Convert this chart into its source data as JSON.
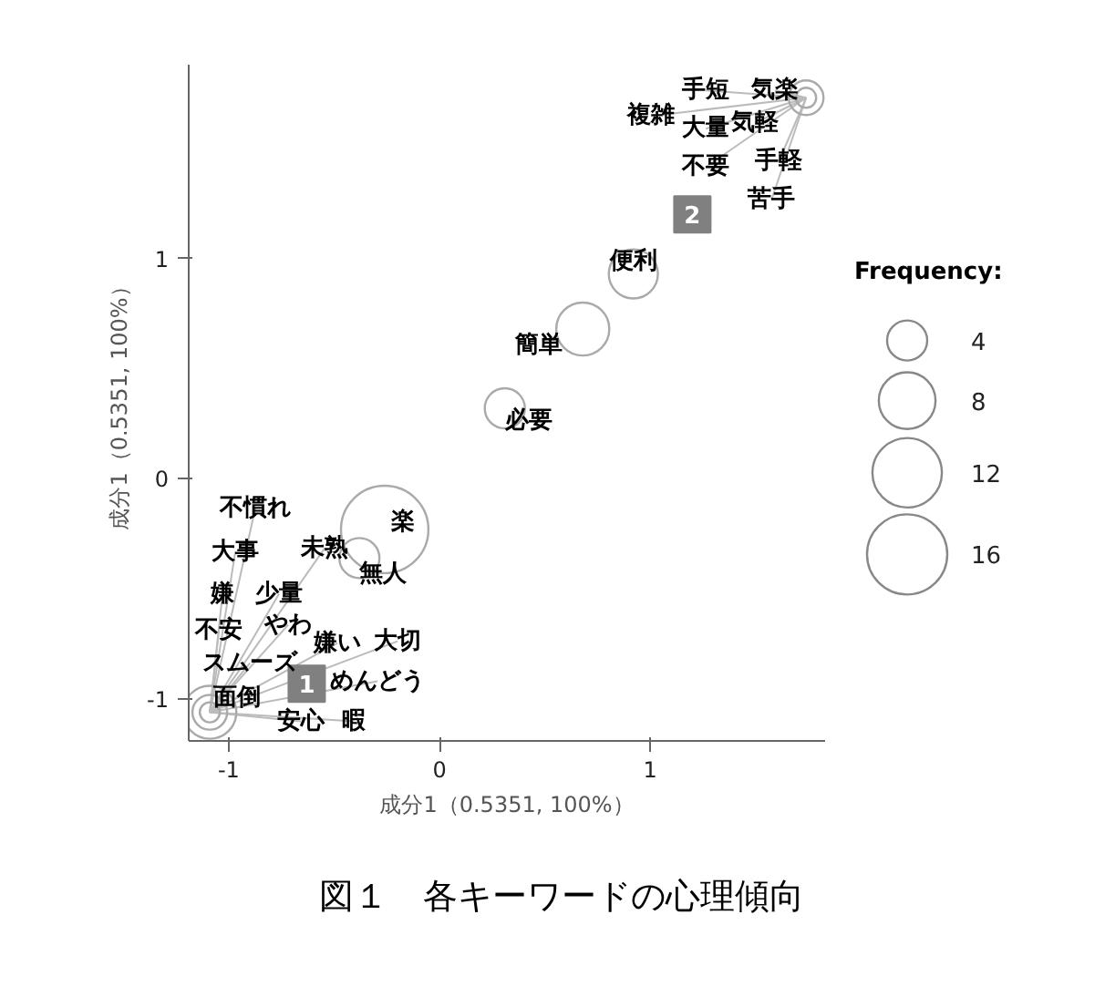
{
  "chart_data": {
    "type": "bubble",
    "title": "図１　各キーワードの心理傾向",
    "xlabel": "成分1（0.5351, 100%）",
    "ylabel": "成分1（0.5351, 100%）",
    "xlim": [
      -1.19,
      1.83
    ],
    "ylim": [
      -1.19,
      1.88
    ],
    "xticks": [
      -1,
      0,
      1
    ],
    "yticks": [
      -1,
      0,
      1
    ],
    "grid": false,
    "legend_title": "Frequency:",
    "size_legend": [
      4,
      8,
      12,
      16
    ],
    "series": [
      {
        "color": "#aaaaaa",
        "x": [
          -1.09,
          -1.09,
          -1.09,
          -0.26,
          -0.38,
          0.31,
          0.68,
          0.92,
          1.74,
          1.74
        ],
        "values": [
          -1.06,
          -1.06,
          -1.06,
          -0.23,
          -0.36,
          0.32,
          0.68,
          0.93,
          1.73,
          1.73
        ],
        "sizes": [
          3,
          7,
          1,
          19,
          4,
          4,
          7,
          6,
          3,
          1
        ]
      },
      {
        "type": "scatter",
        "marker": "square",
        "color": "#808080",
        "x": [
          -0.63,
          1.2
        ],
        "values": [
          -0.93,
          1.2
        ]
      }
    ],
    "annotations": [
      {
        "text": "不慣れ",
        "x": -1.09,
        "y": -1.06
      },
      {
        "text": "大事",
        "x": -1.09,
        "y": -1.06
      },
      {
        "text": "嫌",
        "x": -1.09,
        "y": -1.06
      },
      {
        "text": "少量",
        "x": -1.09,
        "y": -1.06
      },
      {
        "text": "不安",
        "x": -1.09,
        "y": -1.06
      },
      {
        "text": "やわ",
        "x": -1.09,
        "y": -1.06
      },
      {
        "text": "スムーズ",
        "x": -1.09,
        "y": -1.06
      },
      {
        "text": "面倒",
        "x": -1.09,
        "y": -1.06
      },
      {
        "text": "安心",
        "x": -1.09,
        "y": -1.06
      },
      {
        "text": "暇",
        "x": -1.09,
        "y": -1.06
      },
      {
        "text": "嫌い",
        "x": -1.09,
        "y": -1.06
      },
      {
        "text": "大切",
        "x": -1.09,
        "y": -1.06
      },
      {
        "text": "めんどう",
        "x": -1.09,
        "y": -1.06
      },
      {
        "text": "未熟",
        "x": -1.09,
        "y": -1.06
      },
      {
        "text": "楽",
        "x": -0.26,
        "y": -0.23
      },
      {
        "text": "無人",
        "x": -0.38,
        "y": -0.36
      },
      {
        "text": "必要",
        "x": 0.31,
        "y": 0.32
      },
      {
        "text": "簡単",
        "x": 0.68,
        "y": 0.68
      },
      {
        "text": "便利",
        "x": 0.92,
        "y": 0.93
      },
      {
        "text": "手短",
        "x": 1.74,
        "y": 1.73
      },
      {
        "text": "気楽",
        "x": 1.74,
        "y": 1.73
      },
      {
        "text": "複雑",
        "x": 1.74,
        "y": 1.73
      },
      {
        "text": "大量",
        "x": 1.74,
        "y": 1.73
      },
      {
        "text": "気軽",
        "x": 1.74,
        "y": 1.73
      },
      {
        "text": "不要",
        "x": 1.74,
        "y": 1.73
      },
      {
        "text": "手軽",
        "x": 1.74,
        "y": 1.73
      },
      {
        "text": "苦手",
        "x": 1.74,
        "y": 1.73
      },
      {
        "text": "1",
        "x": -0.63,
        "y": -0.93
      },
      {
        "text": "2",
        "x": 1.2,
        "y": 1.2
      }
    ]
  }
}
